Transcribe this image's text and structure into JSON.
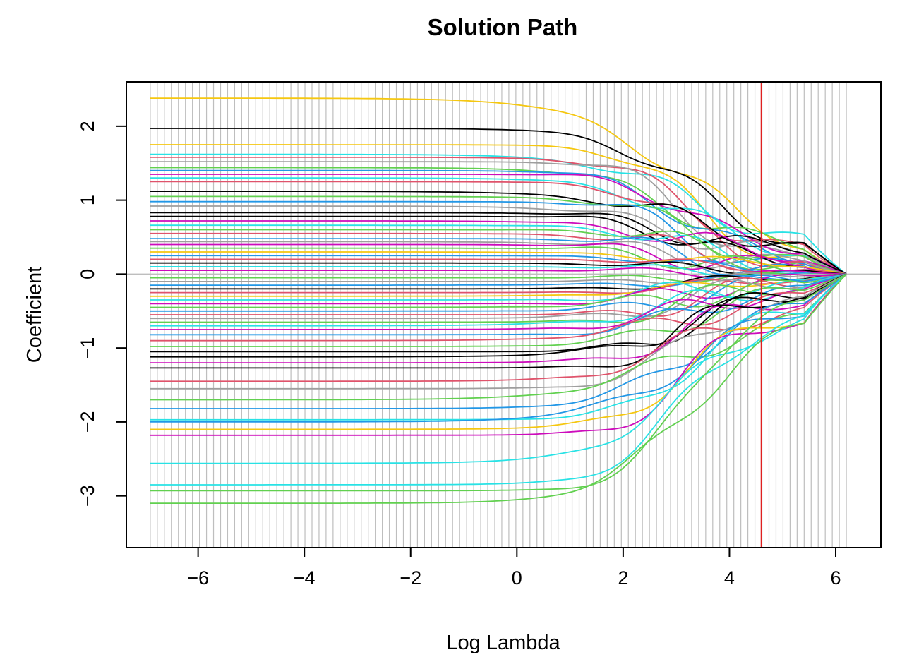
{
  "chart_data": {
    "type": "line",
    "title": "Solution Path",
    "xlabel": "Log Lambda",
    "ylabel": "Coefficient",
    "xlim": [
      -7.35,
      6.85
    ],
    "ylim": [
      -3.7,
      2.6
    ],
    "x_ticks": [
      -6,
      -4,
      -2,
      0,
      2,
      4,
      6
    ],
    "x_tick_labels": [
      "−6",
      "−4",
      "−2",
      "0",
      "2",
      "4",
      "6"
    ],
    "y_ticks": [
      -3,
      -2,
      -1,
      0,
      1,
      2
    ],
    "y_tick_labels": [
      "−3",
      "−2",
      "−1",
      "0",
      "1",
      "2"
    ],
    "lambda_grid": {
      "from": -6.9,
      "to": 6.2,
      "count": 100,
      "color": "#bebebe"
    },
    "zero_line": {
      "y": 0,
      "color": "#bebebe"
    },
    "selected_log_lambda": {
      "x": 4.6,
      "color": "#df2020"
    },
    "palette": [
      "#000000",
      "#df536b",
      "#61d04f",
      "#2297e6",
      "#28e2e5",
      "#cd0bbc",
      "#f5c710",
      "#9e9e9e"
    ],
    "coefficient_series": [
      {
        "start": 2.38,
        "end": 0.15,
        "color": "#f5c710"
      },
      {
        "start": 1.97,
        "end": 0.35,
        "color": "#000000"
      },
      {
        "start": 1.75,
        "end": 0.2,
        "color": "#f5c710"
      },
      {
        "start": 1.62,
        "end": 0.4,
        "color": "#28e2e5"
      },
      {
        "start": 1.58,
        "end": 0.3,
        "color": "#df536b"
      },
      {
        "start": 1.52,
        "end": 0.18,
        "color": "#9e9e9e"
      },
      {
        "start": 1.44,
        "end": 0.25,
        "color": "#61d04f"
      },
      {
        "start": 1.4,
        "end": 0.12,
        "color": "#2297e6"
      },
      {
        "start": 1.35,
        "end": 0.3,
        "color": "#cd0bbc"
      },
      {
        "start": 1.3,
        "end": 0.22,
        "color": "#28e2e5"
      },
      {
        "start": 1.25,
        "end": 0.1,
        "color": "#df536b"
      },
      {
        "start": 1.12,
        "end": 0.32,
        "color": "#000000"
      },
      {
        "start": 1.05,
        "end": 0.15,
        "color": "#61d04f"
      },
      {
        "start": 0.98,
        "end": 0.08,
        "color": "#2297e6"
      },
      {
        "start": 0.92,
        "end": 0.2,
        "color": "#9e9e9e"
      },
      {
        "start": 0.83,
        "end": 0.28,
        "color": "#000000"
      },
      {
        "start": 0.78,
        "end": 0.12,
        "color": "#000000"
      },
      {
        "start": 0.72,
        "end": 0.18,
        "color": "#cd0bbc"
      },
      {
        "start": 0.66,
        "end": 0.06,
        "color": "#28e2e5"
      },
      {
        "start": 0.6,
        "end": 0.14,
        "color": "#61d04f"
      },
      {
        "start": 0.55,
        "end": 0.1,
        "color": "#df536b"
      },
      {
        "start": 0.48,
        "end": 0.05,
        "color": "#2297e6"
      },
      {
        "start": 0.44,
        "end": 0.12,
        "color": "#9e9e9e"
      },
      {
        "start": 0.4,
        "end": 0.08,
        "color": "#cd0bbc"
      },
      {
        "start": 0.35,
        "end": 0.04,
        "color": "#61d04f"
      },
      {
        "start": 0.3,
        "end": 0.1,
        "color": "#f5c710"
      },
      {
        "start": 0.25,
        "end": 0.02,
        "color": "#2297e6"
      },
      {
        "start": 0.2,
        "end": 0.06,
        "color": "#df536b"
      },
      {
        "start": 0.15,
        "end": 0.03,
        "color": "#000000"
      },
      {
        "start": 0.1,
        "end": 0.01,
        "color": "#28e2e5"
      },
      {
        "start": 0.05,
        "end": 0.02,
        "color": "#cd0bbc"
      },
      {
        "start": -0.05,
        "end": -0.02,
        "color": "#61d04f"
      },
      {
        "start": -0.1,
        "end": -0.03,
        "color": "#9e9e9e"
      },
      {
        "start": -0.15,
        "end": -0.05,
        "color": "#2297e6"
      },
      {
        "start": -0.2,
        "end": -0.04,
        "color": "#000000"
      },
      {
        "start": -0.25,
        "end": -0.08,
        "color": "#df536b"
      },
      {
        "start": -0.3,
        "end": -0.06,
        "color": "#f5c710"
      },
      {
        "start": -0.35,
        "end": -0.1,
        "color": "#28e2e5"
      },
      {
        "start": -0.4,
        "end": -0.05,
        "color": "#cd0bbc"
      },
      {
        "start": -0.45,
        "end": -0.12,
        "color": "#61d04f"
      },
      {
        "start": -0.5,
        "end": -0.08,
        "color": "#2297e6"
      },
      {
        "start": -0.55,
        "end": -0.14,
        "color": "#df536b"
      },
      {
        "start": -0.6,
        "end": -0.1,
        "color": "#9e9e9e"
      },
      {
        "start": -0.65,
        "end": -0.16,
        "color": "#61d04f"
      },
      {
        "start": -0.7,
        "end": -0.12,
        "color": "#28e2e5"
      },
      {
        "start": -0.75,
        "end": -0.2,
        "color": "#cd0bbc"
      },
      {
        "start": -0.82,
        "end": -0.18,
        "color": "#2297e6"
      },
      {
        "start": -0.9,
        "end": -0.24,
        "color": "#df536b"
      },
      {
        "start": -0.98,
        "end": -0.2,
        "color": "#61d04f"
      },
      {
        "start": -1.05,
        "end": -0.3,
        "color": "#000000"
      },
      {
        "start": -1.12,
        "end": -0.25,
        "color": "#000000"
      },
      {
        "start": -1.2,
        "end": -0.35,
        "color": "#cd0bbc"
      },
      {
        "start": -1.27,
        "end": -0.28,
        "color": "#000000"
      },
      {
        "start": -1.45,
        "end": -0.4,
        "color": "#df536b"
      },
      {
        "start": -1.55,
        "end": -0.3,
        "color": "#9e9e9e"
      },
      {
        "start": -1.7,
        "end": -0.45,
        "color": "#61d04f"
      },
      {
        "start": -1.82,
        "end": -0.35,
        "color": "#2297e6"
      },
      {
        "start": -1.97,
        "end": -0.5,
        "color": "#28e2e5"
      },
      {
        "start": -2.0,
        "end": -0.4,
        "color": "#2297e6"
      },
      {
        "start": -2.1,
        "end": -0.55,
        "color": "#f5c710"
      },
      {
        "start": -2.18,
        "end": -0.6,
        "color": "#cd0bbc"
      },
      {
        "start": -2.56,
        "end": -0.45,
        "color": "#28e2e5"
      },
      {
        "start": -2.85,
        "end": -0.5,
        "color": "#28e2e5"
      },
      {
        "start": -2.93,
        "end": -0.35,
        "color": "#61d04f"
      },
      {
        "start": -3.1,
        "end": -0.55,
        "color": "#61d04f"
      }
    ]
  }
}
